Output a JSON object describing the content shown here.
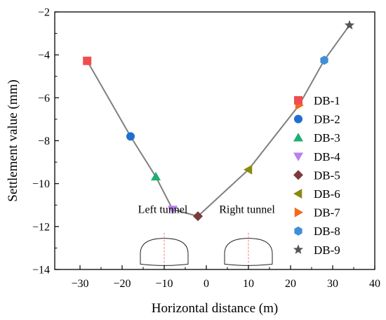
{
  "chart_data": {
    "type": "scatter",
    "title": "",
    "xlabel": "Horizontal distance (m)",
    "ylabel": "Settlement value (mm)",
    "xlim": [
      -36,
      40
    ],
    "ylim": [
      -14,
      -2
    ],
    "xticks": [
      -30,
      -20,
      -10,
      0,
      10,
      20,
      30,
      40
    ],
    "yticks": [
      -14,
      -12,
      -10,
      -8,
      -6,
      -4,
      -2
    ],
    "grid": false,
    "connect_points": true,
    "line_color": "#7f7f7f",
    "legend_position": "right",
    "series": [
      {
        "name": "DB-1",
        "x": -28.3,
        "y": -4.28,
        "marker": "square",
        "color": "#f04e4e"
      },
      {
        "name": "DB-2",
        "x": -18,
        "y": -7.8,
        "marker": "circle",
        "color": "#1f6fd1"
      },
      {
        "name": "DB-3",
        "x": -12,
        "y": -9.68,
        "marker": "triangle-up",
        "color": "#1fae6f"
      },
      {
        "name": "DB-4",
        "x": -8,
        "y": -11.2,
        "marker": "triangle-down",
        "color": "#b97ff0"
      },
      {
        "name": "DB-5",
        "x": -2,
        "y": -11.52,
        "marker": "diamond",
        "color": "#7a3b3b"
      },
      {
        "name": "DB-6",
        "x": 10,
        "y": -9.35,
        "marker": "triangle-left",
        "color": "#8a8a10"
      },
      {
        "name": "DB-7",
        "x": 22,
        "y": -6.35,
        "marker": "triangle-right",
        "color": "#f26b1d"
      },
      {
        "name": "DB-8",
        "x": 28,
        "y": -4.25,
        "marker": "hexagon",
        "color": "#3f8fd8"
      },
      {
        "name": "DB-9",
        "x": 34,
        "y": -2.62,
        "marker": "star",
        "color": "#555555"
      }
    ],
    "annotations": [
      {
        "text": "Left tunnel",
        "tunnel_center_x": -10
      },
      {
        "text": "Right tunnel",
        "tunnel_center_x": 10
      }
    ]
  }
}
